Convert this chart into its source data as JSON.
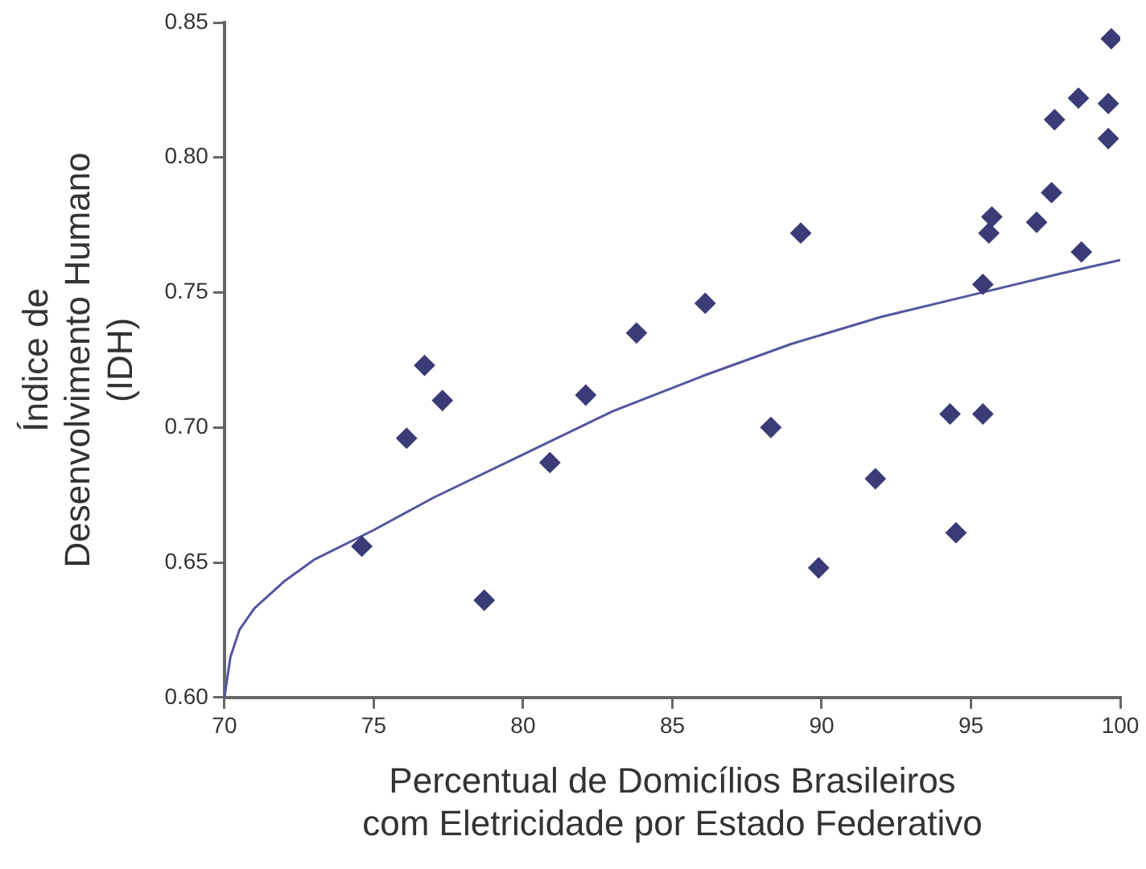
{
  "chart_data": {
    "type": "scatter",
    "xlabel": "Percentual de Domicílios Brasileiros\ncom Eletricidade por Estado Federativo",
    "ylabel": "Índice de\nDesenvolvimento Humano\n(IDH)",
    "xlim": [
      70,
      100
    ],
    "xticks": [
      70,
      75,
      80,
      85,
      90,
      95,
      100
    ],
    "ylim": [
      0.6,
      0.85
    ],
    "yticks": [
      {
        "value": 0.6,
        "label": "0.60"
      },
      {
        "value": 0.65,
        "label": "0.65"
      },
      {
        "value": 0.7,
        "label": "0.70"
      },
      {
        "value": 0.75,
        "label": "0.75"
      },
      {
        "value": 0.8,
        "label": "0.80"
      },
      {
        "value": 0.85,
        "label": "0.85"
      }
    ],
    "grid": false,
    "legend": false,
    "marker": "diamond",
    "series": [
      {
        "color": "#3b3b78",
        "x": [
          74.6,
          76.1,
          76.7,
          77.3,
          78.7,
          80.9,
          82.1,
          83.8,
          86.1,
          88.3,
          89.3,
          89.9,
          91.8,
          94.3,
          94.5,
          95.4,
          95.4,
          95.6,
          95.7,
          97.2,
          97.7,
          98.7,
          97.8,
          98.6,
          99.6,
          99.6,
          99.7
        ],
        "values": [
          0.656,
          0.696,
          0.723,
          0.71,
          0.636,
          0.687,
          0.712,
          0.735,
          0.746,
          0.7,
          0.772,
          0.648,
          0.681,
          0.705,
          0.661,
          0.705,
          0.753,
          0.772,
          0.778,
          0.776,
          0.787,
          0.765,
          0.814,
          0.822,
          0.807,
          0.82,
          0.844
        ]
      },
      {
        "type": "line",
        "color": "#5555a0",
        "marker": "none",
        "line_style": "solid",
        "x": [
          70,
          70.2,
          70.5,
          71,
          72,
          73,
          75,
          77,
          80,
          83,
          86,
          89,
          92,
          95,
          98,
          100
        ],
        "values": [
          0.6,
          0.615,
          0.625,
          0.633,
          0.643,
          0.651,
          0.662,
          0.674,
          0.69,
          0.706,
          0.719,
          0.731,
          0.741,
          0.749,
          0.757,
          0.762
        ]
      }
    ]
  }
}
